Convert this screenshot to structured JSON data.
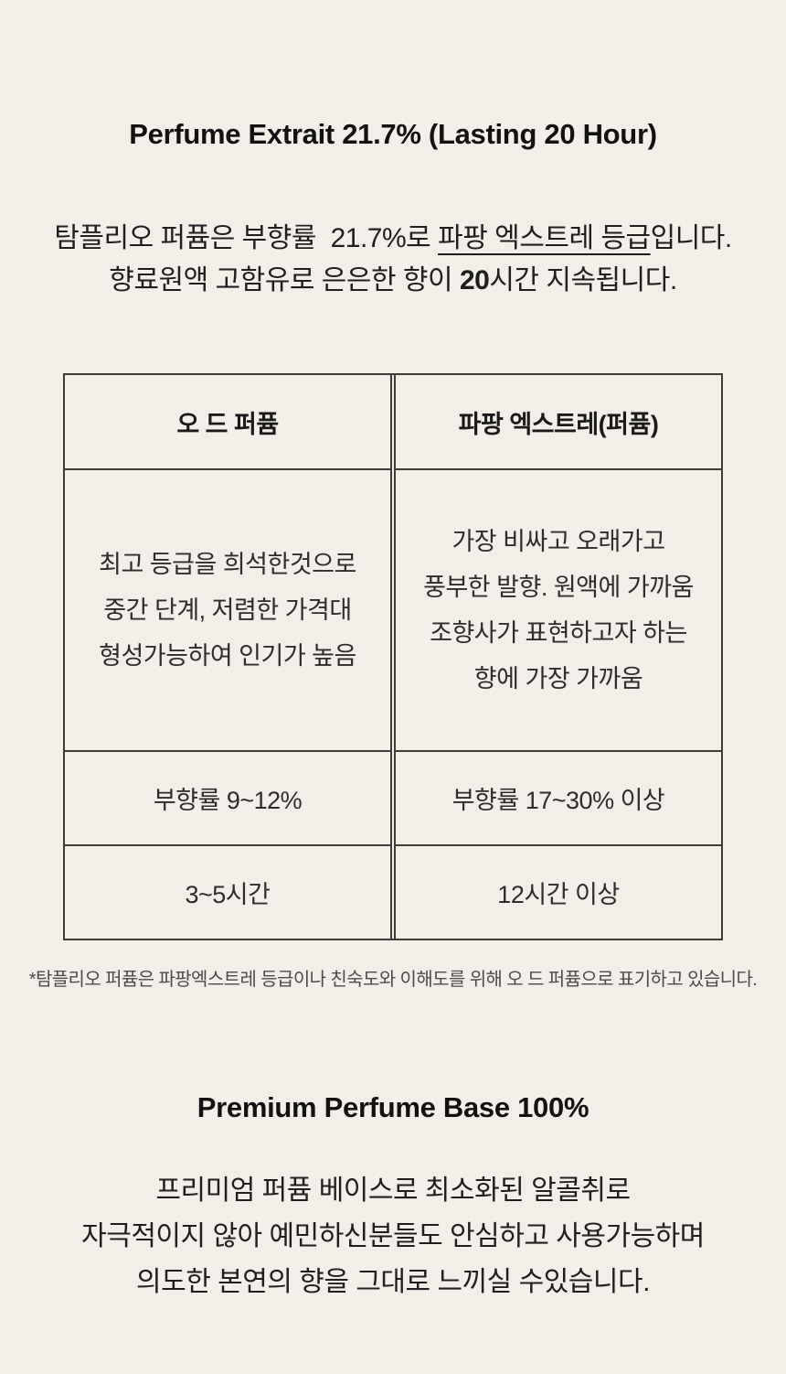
{
  "page": {
    "bg_color": "#f3eee8",
    "border_color": "#403d39"
  },
  "section_extrait": {
    "title": "Perfume Extrait 21.7% (Lasting 20 Hour)",
    "intro": {
      "line1_pre": "탐플리오 퍼퓸은 부향률  21.7%로 ",
      "line1_underlined": "파팡 엑스트레 등급",
      "line1_post": "입니다.",
      "line2_pre": "향료원액 고함유로 은은한 향이 ",
      "line2_bold": "20",
      "line2_post": "시간 지속됩니다."
    }
  },
  "comparison_table": {
    "columns": [
      {
        "header": "오 드 퍼퓸",
        "description_lines": [
          "최고 등급을 희석한것으로",
          "중간 단계, 저렴한 가격대",
          "형성가능하여 인기가 높음"
        ],
        "concentration": "부향률 9~12%",
        "duration": "3~5시간"
      },
      {
        "header": "파팡 엑스트레(퍼퓸)",
        "description_lines": [
          "가장 비싸고 오래가고",
          "풍부한 발향. 원액에 가까움",
          "조향사가 표현하고자 하는",
          "향에 가장 가까움"
        ],
        "concentration": "부향률 17~30% 이상",
        "duration": "12시간 이상"
      }
    ],
    "footnote": "*탐플리오 퍼퓸은 파팡엑스트레 등급이나 친숙도와 이해도를 위해 오 드 퍼퓸으로 표기하고 있습니다."
  },
  "section_base": {
    "title": "Premium Perfume Base 100%",
    "body_lines": [
      "프리미엄 퍼퓸 베이스로 최소화된 알콜취로",
      "자극적이지 않아 예민하신분들도 안심하고 사용가능하며",
      "의도한 본연의 향을 그대로 느끼실 수있습니다."
    ]
  }
}
